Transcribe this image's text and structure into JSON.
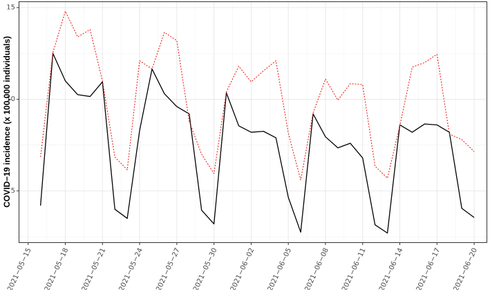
{
  "chart_data": {
    "type": "line",
    "title": "",
    "xlabel": "",
    "ylabel": "COVID−19 incidence (x 100,000 individuals)",
    "x_tick_labels": [
      "2021−05−15",
      "2021−05−18",
      "2021−05−21",
      "2021−05−24",
      "2021−05−27",
      "2021−05−30",
      "2021−06−02",
      "2021−06−05",
      "2021−06−08",
      "2021−06−11",
      "2021−06−14",
      "2021−06−17",
      "2021−06−20"
    ],
    "y_ticks": [
      5,
      10,
      15
    ],
    "ylim": [
      2.2,
      15.3
    ],
    "xlim": [
      "2021-05-14T07:00",
      "2021-06-21T00:00"
    ],
    "grid": true,
    "legend": "none",
    "x": [
      "2021-05-16",
      "2021-05-17",
      "2021-05-18",
      "2021-05-19",
      "2021-05-20",
      "2021-05-21",
      "2021-05-22",
      "2021-05-23",
      "2021-05-24",
      "2021-05-25",
      "2021-05-26",
      "2021-05-27",
      "2021-05-28",
      "2021-05-29",
      "2021-05-30",
      "2021-05-31",
      "2021-06-01",
      "2021-06-02",
      "2021-06-03",
      "2021-06-04",
      "2021-06-05",
      "2021-06-06",
      "2021-06-07",
      "2021-06-08",
      "2021-06-09",
      "2021-06-10",
      "2021-06-11",
      "2021-06-12",
      "2021-06-13",
      "2021-06-14",
      "2021-06-15",
      "2021-06-16",
      "2021-06-17",
      "2021-06-18",
      "2021-06-19",
      "2021-06-20"
    ],
    "series": [
      {
        "color": "#000000",
        "style": "solid",
        "values": [
          4.2,
          12.5,
          11.0,
          10.25,
          10.15,
          10.95,
          4.0,
          3.5,
          8.3,
          11.65,
          10.3,
          9.6,
          9.2,
          3.95,
          3.2,
          10.35,
          8.55,
          8.2,
          8.25,
          7.9,
          4.65,
          2.75,
          9.2,
          7.95,
          7.35,
          7.6,
          6.8,
          3.15,
          2.7,
          8.6,
          8.2,
          8.65,
          8.6,
          8.2,
          4.05,
          3.55
        ]
      },
      {
        "color": "#e8231b",
        "style": "dotted",
        "values": [
          6.85,
          12.55,
          14.8,
          13.4,
          13.8,
          11.0,
          6.85,
          6.15,
          12.1,
          11.65,
          13.65,
          13.2,
          8.8,
          7.0,
          5.95,
          10.4,
          11.8,
          10.95,
          11.55,
          12.1,
          8.15,
          5.6,
          9.25,
          11.1,
          9.95,
          10.85,
          10.8,
          6.35,
          5.7,
          8.55,
          11.75,
          12.0,
          12.45,
          8.1,
          7.8,
          7.15
        ]
      }
    ]
  }
}
